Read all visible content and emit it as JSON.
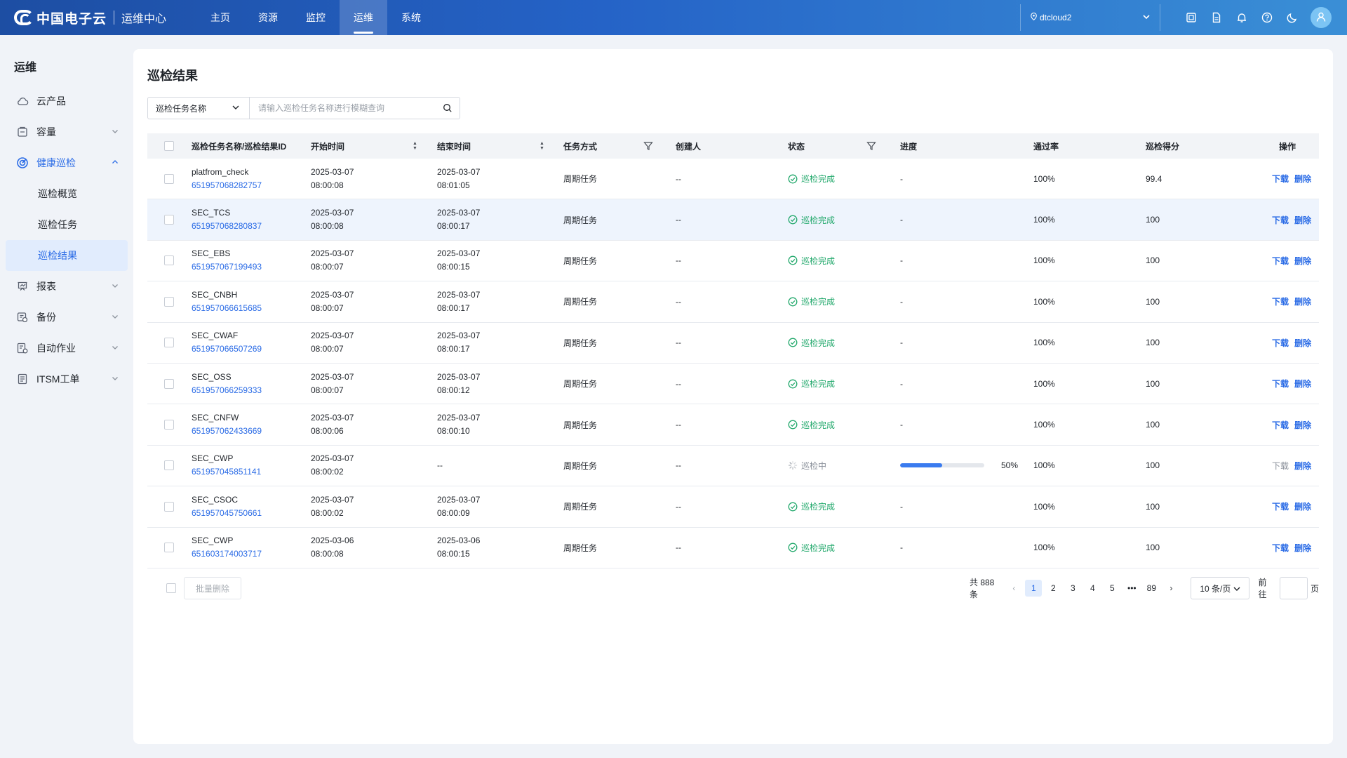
{
  "header": {
    "brand": "中国电子云",
    "subtitle": "运维中心",
    "nav": [
      {
        "label": "主页",
        "active": false
      },
      {
        "label": "资源",
        "active": false
      },
      {
        "label": "监控",
        "active": false
      },
      {
        "label": "运维",
        "active": true
      },
      {
        "label": "系统",
        "active": false
      }
    ],
    "region": "dtcloud2",
    "icons": [
      "screen-icon",
      "document-icon",
      "bell-icon",
      "help-icon",
      "moon-icon"
    ],
    "avatar_icon": "user-icon"
  },
  "sidebar": {
    "title": "运维",
    "items": [
      {
        "label": "云产品",
        "icon": "cloud-icon",
        "expandable": false
      },
      {
        "label": "容量",
        "icon": "capacity-icon",
        "expandable": true
      },
      {
        "label": "健康巡检",
        "icon": "health-check-icon",
        "expandable": true,
        "open": true,
        "children": [
          {
            "label": "巡检概览",
            "active": false
          },
          {
            "label": "巡检任务",
            "active": false
          },
          {
            "label": "巡检结果",
            "active": true
          }
        ]
      },
      {
        "label": "报表",
        "icon": "report-icon",
        "expandable": true
      },
      {
        "label": "备份",
        "icon": "backup-icon",
        "expandable": true
      },
      {
        "label": "自动作业",
        "icon": "automation-icon",
        "expandable": true
      },
      {
        "label": "ITSM工单",
        "icon": "ticket-icon",
        "expandable": true
      }
    ]
  },
  "main": {
    "title": "巡检结果",
    "search": {
      "field": "巡检任务名称",
      "placeholder": "请输入巡检任务名称进行模糊查询",
      "value": ""
    },
    "table": {
      "columns": [
        "巡检任务名称/巡检结果ID",
        "开始时间",
        "结束时间",
        "任务方式",
        "创建人",
        "状态",
        "进度",
        "通过率",
        "巡检得分",
        "操作"
      ],
      "rows": [
        {
          "name": "platfrom_check",
          "id": "651957068282757",
          "start_date": "2025-03-07",
          "start_time": "08:00:08",
          "end_date": "2025-03-07",
          "end_time": "08:01:05",
          "mode": "周期任务",
          "creator": "--",
          "status": "巡检完成",
          "progress": "-",
          "pass_rate": "100%",
          "score": "99.4"
        },
        {
          "name": "SEC_TCS",
          "id": "651957068280837",
          "start_date": "2025-03-07",
          "start_time": "08:00:08",
          "end_date": "2025-03-07",
          "end_time": "08:00:17",
          "mode": "周期任务",
          "creator": "--",
          "status": "巡检完成",
          "progress": "-",
          "pass_rate": "100%",
          "score": "100"
        },
        {
          "name": "SEC_EBS",
          "id": "651957067199493",
          "start_date": "2025-03-07",
          "start_time": "08:00:07",
          "end_date": "2025-03-07",
          "end_time": "08:00:15",
          "mode": "周期任务",
          "creator": "--",
          "status": "巡检完成",
          "progress": "-",
          "pass_rate": "100%",
          "score": "100"
        },
        {
          "name": "SEC_CNBH",
          "id": "651957066615685",
          "start_date": "2025-03-07",
          "start_time": "08:00:07",
          "end_date": "2025-03-07",
          "end_time": "08:00:17",
          "mode": "周期任务",
          "creator": "--",
          "status": "巡检完成",
          "progress": "-",
          "pass_rate": "100%",
          "score": "100"
        },
        {
          "name": "SEC_CWAF",
          "id": "651957066507269",
          "start_date": "2025-03-07",
          "start_time": "08:00:07",
          "end_date": "2025-03-07",
          "end_time": "08:00:17",
          "mode": "周期任务",
          "creator": "--",
          "status": "巡检完成",
          "progress": "-",
          "pass_rate": "100%",
          "score": "100"
        },
        {
          "name": "SEC_OSS",
          "id": "651957066259333",
          "start_date": "2025-03-07",
          "start_time": "08:00:07",
          "end_date": "2025-03-07",
          "end_time": "08:00:12",
          "mode": "周期任务",
          "creator": "--",
          "status": "巡检完成",
          "progress": "-",
          "pass_rate": "100%",
          "score": "100"
        },
        {
          "name": "SEC_CNFW",
          "id": "651957062433669",
          "start_date": "2025-03-07",
          "start_time": "08:00:06",
          "end_date": "2025-03-07",
          "end_time": "08:00:10",
          "mode": "周期任务",
          "creator": "--",
          "status": "巡检完成",
          "progress": "-",
          "pass_rate": "100%",
          "score": "100"
        },
        {
          "name": "SEC_CWP",
          "id": "651957045851141",
          "start_date": "2025-03-07",
          "start_time": "08:00:02",
          "end_date": "--",
          "end_time": "",
          "mode": "周期任务",
          "creator": "--",
          "status": "巡检中",
          "progress": "50%",
          "progress_value": 0.5,
          "pass_rate": "100%",
          "score": "100",
          "download_disabled": true
        },
        {
          "name": "SEC_CSOC",
          "id": "651957045750661",
          "start_date": "2025-03-07",
          "start_time": "08:00:02",
          "end_date": "2025-03-07",
          "end_time": "08:00:09",
          "mode": "周期任务",
          "creator": "--",
          "status": "巡检完成",
          "progress": "-",
          "pass_rate": "100%",
          "score": "100"
        },
        {
          "name": "SEC_CWP",
          "id": "651603174003717",
          "start_date": "2025-03-06",
          "start_time": "08:00:08",
          "end_date": "2025-03-06",
          "end_time": "08:00:15",
          "mode": "周期任务",
          "creator": "--",
          "status": "巡检完成",
          "progress": "-",
          "pass_rate": "100%",
          "score": "100"
        }
      ],
      "actions": {
        "download": "下载",
        "delete": "删除"
      },
      "highlighted_row": 1
    },
    "footer": {
      "batch_delete": "批量删除",
      "total": "共 888 条",
      "pages": [
        "1",
        "2",
        "3",
        "4",
        "5",
        "•••",
        "89"
      ],
      "current_page": "1",
      "page_size": "10 条/页",
      "goto_label": "前往",
      "goto_value": "",
      "page_unit": "页"
    },
    "colors": {
      "primary": "#2a6be6",
      "success": "#21a86b",
      "header_start": "#1d4ea3",
      "header_end": "#3a8fd6"
    }
  }
}
